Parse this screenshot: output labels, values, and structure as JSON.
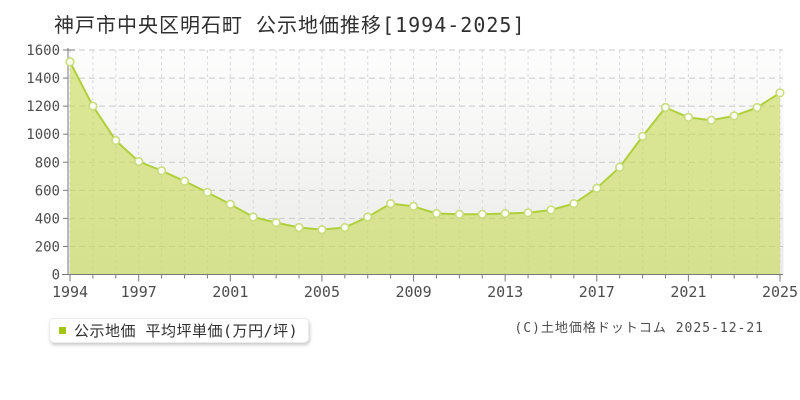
{
  "title": "神戸市中央区明石町 公示地価推移[1994-2025]",
  "legend": {
    "label": "公示地価 平均坪単価(万円/坪)",
    "swatch_color": "#a3c614"
  },
  "footer": {
    "text": "(C)土地価格ドットコム 2025-12-21"
  },
  "chart_data": {
    "type": "area",
    "title": "神戸市中央区明石町 公示地価推移[1994-2025]",
    "series_name": "公示地価 平均坪単価",
    "unit": "万円/坪",
    "x": [
      1994,
      1995,
      1996,
      1997,
      1998,
      1999,
      2000,
      2001,
      2002,
      2003,
      2004,
      2005,
      2006,
      2007,
      2008,
      2009,
      2010,
      2011,
      2012,
      2013,
      2014,
      2015,
      2016,
      2017,
      2018,
      2019,
      2020,
      2021,
      2022,
      2023,
      2024,
      2025
    ],
    "values": [
      1515,
      1200,
      955,
      805,
      740,
      665,
      585,
      500,
      410,
      370,
      335,
      320,
      335,
      410,
      505,
      485,
      435,
      430,
      430,
      435,
      440,
      460,
      505,
      615,
      765,
      985,
      1190,
      1120,
      1100,
      1130,
      1190,
      1295
    ],
    "ylim": [
      0,
      1600
    ],
    "ytick_step": 200,
    "xticks_labeled": [
      1994,
      1997,
      2001,
      2005,
      2009,
      2013,
      2017,
      2021,
      2025
    ],
    "grid": true,
    "legend_position": "bottom-left",
    "colors": {
      "area_fill": "#c6da52",
      "area_fill_opacity": 0.6,
      "line": "#b1cf3c",
      "marker_fill": "#fefef8",
      "marker_stroke": "#c9dd7f",
      "grid_h": "#c9c9c9",
      "grid_v": "#d9d9d9",
      "axis": "#7a7a7a",
      "tick_label": "#4d4d4d",
      "bg_top": "#fdfdfd",
      "bg_bottom": "#ebebe9"
    }
  }
}
